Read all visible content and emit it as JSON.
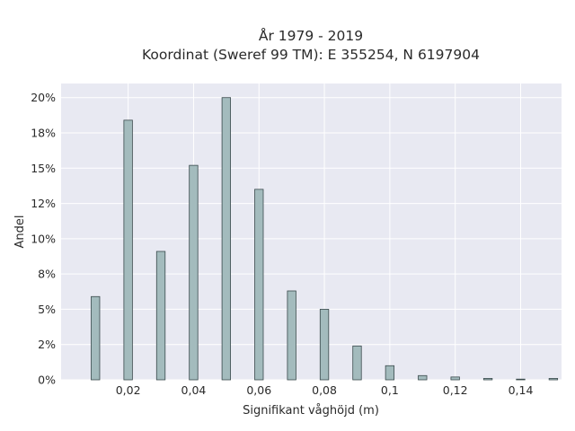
{
  "chart_data": {
    "type": "bar",
    "title_line1": "År 1979 - 2019",
    "title_line2": "Koordinat (Sweref 99 TM): E 355254, N 6197904",
    "xlabel": "Signifikant våghöjd (m)",
    "ylabel": "Andel",
    "x": [
      0.01,
      0.02,
      0.03,
      0.04,
      0.05,
      0.06,
      0.07,
      0.08,
      0.09,
      0.1,
      0.11,
      0.12,
      0.13,
      0.14,
      0.15
    ],
    "values": [
      0.059,
      0.184,
      0.091,
      0.152,
      0.2,
      0.135,
      0.063,
      0.05,
      0.024,
      0.01,
      0.003,
      0.002,
      0.001,
      0.0005,
      0.001
    ],
    "xlim": [
      -0.0005,
      0.1525
    ],
    "ylim": [
      0,
      0.21
    ],
    "x_ticks": [
      {
        "value": 0.02,
        "label": "0,02"
      },
      {
        "value": 0.04,
        "label": "0,04"
      },
      {
        "value": 0.06,
        "label": "0,06"
      },
      {
        "value": 0.08,
        "label": "0,08"
      },
      {
        "value": 0.1,
        "label": "0,1"
      },
      {
        "value": 0.12,
        "label": "0,12"
      },
      {
        "value": 0.14,
        "label": "0,14"
      }
    ],
    "y_ticks": [
      {
        "value": 0.0,
        "label": "0%"
      },
      {
        "value": 0.025,
        "label": "2%"
      },
      {
        "value": 0.05,
        "label": "5%"
      },
      {
        "value": 0.075,
        "label": "8%"
      },
      {
        "value": 0.1,
        "label": "10%"
      },
      {
        "value": 0.125,
        "label": "12%"
      },
      {
        "value": 0.15,
        "label": "15%"
      },
      {
        "value": 0.175,
        "label": "18%"
      },
      {
        "value": 0.2,
        "label": "20%"
      }
    ],
    "grid": true,
    "colors": {
      "bar_fill": "#a3bbbd",
      "bar_stroke": "#3a4a4c",
      "plot_bg": "#e8e9f2",
      "grid": "#ffffff"
    }
  }
}
